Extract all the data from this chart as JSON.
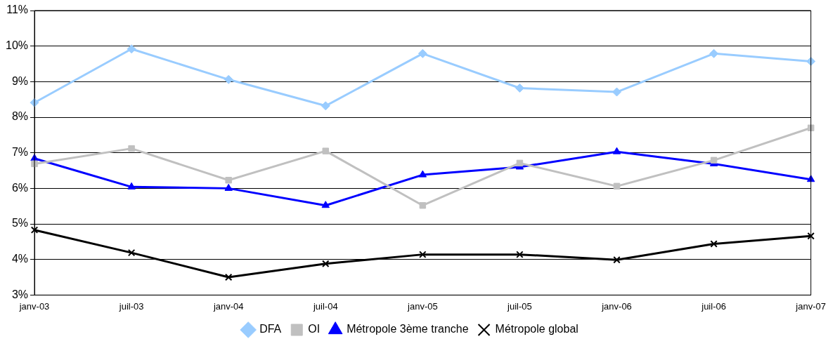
{
  "chart_data": {
    "type": "line",
    "categories": [
      "janv-03",
      "juil-03",
      "janv-04",
      "juil-04",
      "janv-05",
      "juil-05",
      "janv-06",
      "juil-06",
      "janv-07"
    ],
    "series": [
      {
        "name": "DFA",
        "color": "#99ccff",
        "marker": "diamond",
        "values": [
          8.41,
          9.92,
          9.06,
          8.32,
          9.79,
          8.82,
          8.71,
          9.79,
          9.57
        ]
      },
      {
        "name": "OI",
        "color": "#c0c0c0",
        "marker": "square",
        "values": [
          6.69,
          7.12,
          6.23,
          7.05,
          5.52,
          6.71,
          6.06,
          6.79,
          7.7
        ]
      },
      {
        "name": "Métropole 3ème tranche",
        "color": "#0000ff",
        "marker": "triangle",
        "values": [
          6.84,
          6.04,
          6.0,
          5.52,
          6.38,
          6.6,
          7.03,
          6.69,
          6.25
        ]
      },
      {
        "name": "Métropole global",
        "color": "#000000",
        "marker": "cross",
        "values": [
          4.83,
          4.19,
          3.5,
          3.88,
          4.14,
          4.14,
          3.99,
          4.44,
          4.66
        ]
      }
    ],
    "ylim": [
      3,
      11
    ],
    "yticks": [
      {
        "value": 3,
        "label": "3%"
      },
      {
        "value": 4,
        "label": "4%"
      },
      {
        "value": 5,
        "label": "5%"
      },
      {
        "value": 6,
        "label": "6%"
      },
      {
        "value": 7,
        "label": "7%"
      },
      {
        "value": 8,
        "label": "8%"
      },
      {
        "value": 9,
        "label": "9%"
      },
      {
        "value": 10,
        "label": "10%"
      },
      {
        "value": 11,
        "label": "11%"
      }
    ],
    "grid": "y",
    "legend": "bottom",
    "line_style": "solid"
  }
}
